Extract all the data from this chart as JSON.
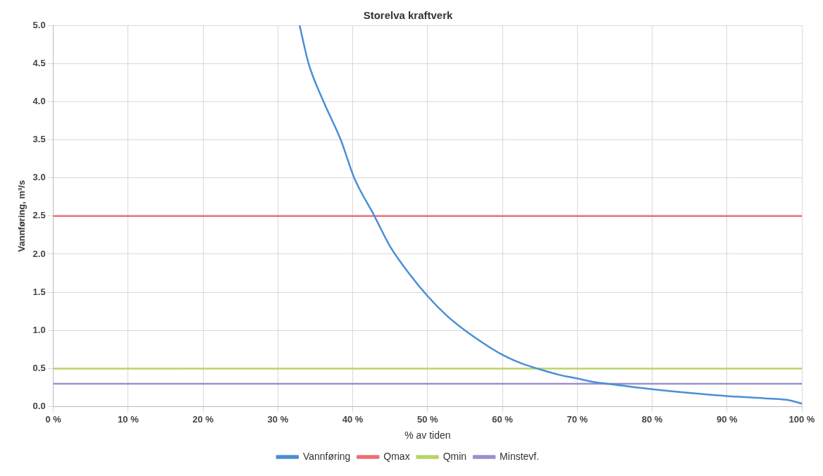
{
  "chart_data": {
    "type": "line",
    "title": "Storelva kraftverk",
    "xlabel": "% av tiden",
    "ylabel": "Vannføring, m³/s",
    "xlim": [
      0,
      100
    ],
    "ylim": [
      0,
      5
    ],
    "xticks": [
      {
        "value": 0,
        "label": "0 %"
      },
      {
        "value": 10,
        "label": "10 %"
      },
      {
        "value": 20,
        "label": "20 %"
      },
      {
        "value": 30,
        "label": "30 %"
      },
      {
        "value": 40,
        "label": "40 %"
      },
      {
        "value": 50,
        "label": "50 %"
      },
      {
        "value": 60,
        "label": "60 %"
      },
      {
        "value": 70,
        "label": "70 %"
      },
      {
        "value": 80,
        "label": "80 %"
      },
      {
        "value": 90,
        "label": "90 %"
      },
      {
        "value": 100,
        "label": "100 %"
      }
    ],
    "yticks": [
      {
        "value": 0,
        "label": "0.0"
      },
      {
        "value": 0.5,
        "label": "0.5"
      },
      {
        "value": 1,
        "label": "1.0"
      },
      {
        "value": 1.5,
        "label": "1.5"
      },
      {
        "value": 2,
        "label": "2.0"
      },
      {
        "value": 2.5,
        "label": "2.5"
      },
      {
        "value": 3,
        "label": "3.0"
      },
      {
        "value": 3.5,
        "label": "3.5"
      },
      {
        "value": 4,
        "label": "4.0"
      },
      {
        "value": 4.5,
        "label": "4.5"
      },
      {
        "value": 5,
        "label": "5.0"
      }
    ],
    "grid": true,
    "legend": "bottom",
    "marker": "none",
    "line_style": "solid",
    "series": [
      {
        "name": "Vannføring",
        "color": "#4a8fd6",
        "x": [
          32.9,
          34.1,
          36.1,
          38.4,
          40.2,
          42.9,
          45,
          47.5,
          50,
          52.5,
          55,
          57.5,
          60,
          62.5,
          65,
          67.5,
          70,
          72.5,
          75,
          80,
          85,
          90,
          95,
          98,
          100
        ],
        "values": [
          5.0,
          4.5,
          4.0,
          3.5,
          3.0,
          2.5,
          2.1,
          1.75,
          1.45,
          1.2,
          1.0,
          0.83,
          0.68,
          0.57,
          0.49,
          0.42,
          0.37,
          0.32,
          0.29,
          0.23,
          0.18,
          0.14,
          0.11,
          0.09,
          0.04
        ]
      },
      {
        "name": "Qmax",
        "color": "#ec6f78",
        "x": [
          0,
          100
        ],
        "values": [
          2.5,
          2.5
        ]
      },
      {
        "name": "Qmin",
        "color": "#b9d36a",
        "x": [
          0,
          100
        ],
        "values": [
          0.5,
          0.5
        ]
      },
      {
        "name": "Minstevf.",
        "color": "#9b8fd0",
        "x": [
          0,
          100
        ],
        "values": [
          0.3,
          0.3
        ]
      }
    ]
  }
}
